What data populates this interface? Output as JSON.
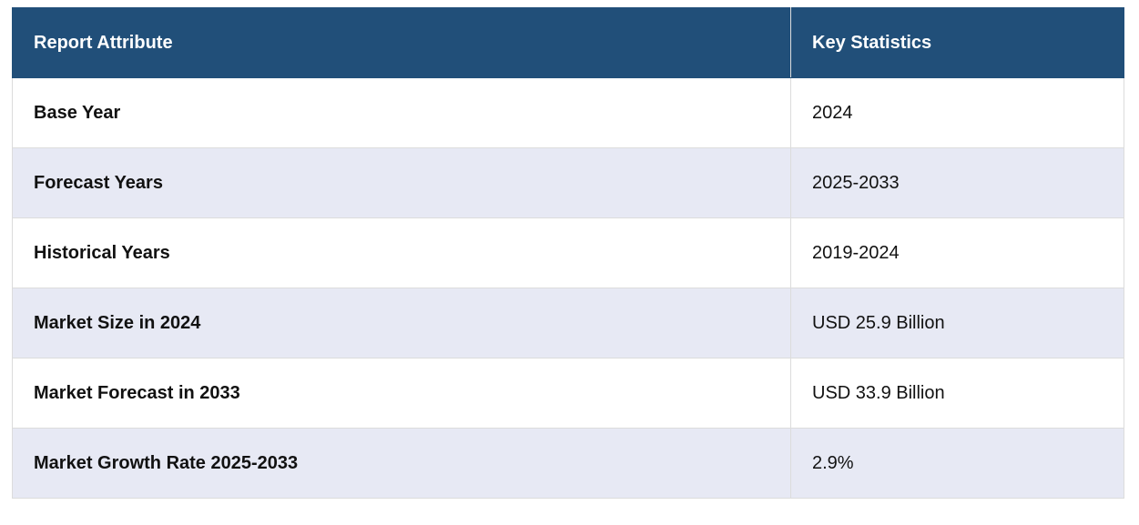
{
  "table": {
    "header": [
      "Report Attribute",
      "Key Statistics"
    ],
    "rows": [
      [
        "Base Year",
        "2024"
      ],
      [
        "Forecast Years",
        "2025-2033"
      ],
      [
        "Historical Years",
        "2019-2024"
      ],
      [
        "Market Size in 2024",
        "USD 25.9 Billion"
      ],
      [
        "Market Forecast in 2033",
        "USD 33.9 Billion"
      ],
      [
        "Market Growth Rate 2025-2033",
        "2.9%"
      ]
    ]
  }
}
